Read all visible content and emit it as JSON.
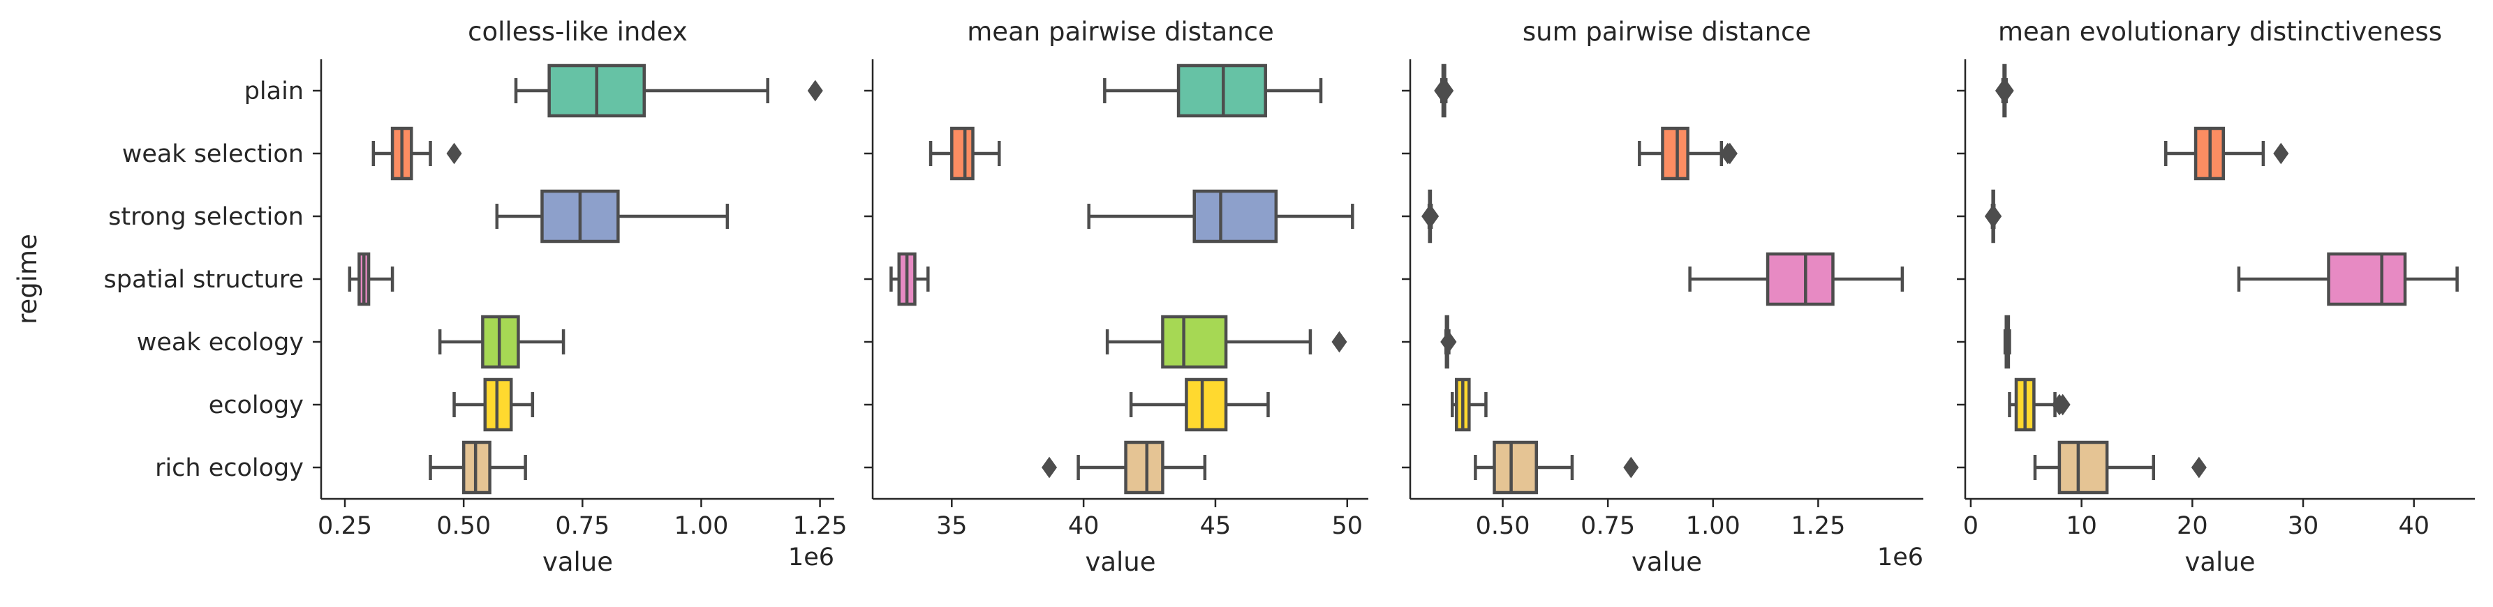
{
  "chart_data": {
    "type": "boxplot",
    "ylabel": "regime",
    "categories": [
      "plain",
      "weak selection",
      "strong selection",
      "spatial structure",
      "weak ecology",
      "ecology",
      "rich ecology"
    ],
    "colors": [
      "#66c2a5",
      "#fc8d62",
      "#8da0cb",
      "#e78ac3",
      "#a6d854",
      "#ffd92f",
      "#e5c494"
    ],
    "panels": [
      {
        "title": "colless-like index",
        "xlabel": "value",
        "offset_label": "1e6",
        "xlim": [
          0.2,
          1.28
        ],
        "ticks": [
          0.25,
          0.5,
          0.75,
          1.0,
          1.25
        ],
        "tick_labels": [
          "0.25",
          "0.50",
          "0.75",
          "1.00",
          "1.25"
        ],
        "boxes": [
          {
            "whislo": 0.61,
            "q1": 0.68,
            "med": 0.78,
            "q3": 0.88,
            "whishi": 1.14,
            "fliers": [
              1.24
            ]
          },
          {
            "whislo": 0.31,
            "q1": 0.35,
            "med": 0.37,
            "q3": 0.39,
            "whishi": 0.43,
            "fliers": [
              0.48
            ]
          },
          {
            "whislo": 0.57,
            "q1": 0.665,
            "med": 0.745,
            "q3": 0.825,
            "whishi": 1.055,
            "fliers": []
          },
          {
            "whislo": 0.26,
            "q1": 0.28,
            "med": 0.29,
            "q3": 0.3,
            "whishi": 0.35,
            "fliers": []
          },
          {
            "whislo": 0.45,
            "q1": 0.54,
            "med": 0.575,
            "q3": 0.615,
            "whishi": 0.71,
            "fliers": []
          },
          {
            "whislo": 0.48,
            "q1": 0.545,
            "med": 0.57,
            "q3": 0.6,
            "whishi": 0.645,
            "fliers": []
          },
          {
            "whislo": 0.43,
            "q1": 0.5,
            "med": 0.525,
            "q3": 0.555,
            "whishi": 0.63,
            "fliers": []
          }
        ]
      },
      {
        "title": "mean pairwise distance",
        "xlabel": "value",
        "offset_label": "",
        "xlim": [
          32,
          50.8
        ],
        "ticks": [
          35,
          40,
          45,
          50
        ],
        "tick_labels": [
          "35",
          "40",
          "45",
          "50"
        ],
        "boxes": [
          {
            "whislo": 40.8,
            "q1": 43.6,
            "med": 45.3,
            "q3": 46.9,
            "whishi": 49.0,
            "fliers": []
          },
          {
            "whislo": 34.2,
            "q1": 35.0,
            "med": 35.5,
            "q3": 35.8,
            "whishi": 36.8,
            "fliers": []
          },
          {
            "whislo": 40.2,
            "q1": 44.2,
            "med": 45.2,
            "q3": 47.3,
            "whishi": 50.2,
            "fliers": []
          },
          {
            "whislo": 32.7,
            "q1": 33.0,
            "med": 33.3,
            "q3": 33.6,
            "whishi": 34.1,
            "fliers": []
          },
          {
            "whislo": 40.9,
            "q1": 43.0,
            "med": 43.8,
            "q3": 45.4,
            "whishi": 48.6,
            "fliers": [
              49.7
            ]
          },
          {
            "whislo": 41.8,
            "q1": 43.9,
            "med": 44.5,
            "q3": 45.4,
            "whishi": 47.0,
            "fliers": []
          },
          {
            "whislo": 39.8,
            "q1": 41.6,
            "med": 42.4,
            "q3": 43.0,
            "whishi": 44.6,
            "fliers": [
              38.7
            ]
          }
        ]
      },
      {
        "title": "sum pairwise distance",
        "xlabel": "value",
        "offset_label": "1e6",
        "xlim": [
          0.28,
          1.5
        ],
        "ticks": [
          0.5,
          0.75,
          1.0,
          1.25
        ],
        "tick_labels": [
          "0.50",
          "0.75",
          "1.00",
          "1.25"
        ],
        "boxes": [
          {
            "whislo": 0.355,
            "q1": 0.358,
            "med": 0.36,
            "q3": 0.362,
            "whishi": 0.365,
            "fliers": [
              0.355,
              0.365
            ]
          },
          {
            "whislo": 0.825,
            "q1": 0.88,
            "med": 0.915,
            "q3": 0.94,
            "whishi": 1.02,
            "fliers": [
              1.035,
              1.04
            ]
          },
          {
            "whislo": 0.325,
            "q1": 0.326,
            "med": 0.327,
            "q3": 0.328,
            "whishi": 0.33,
            "fliers": [
              0.325,
              0.33
            ]
          },
          {
            "whislo": 0.945,
            "q1": 1.13,
            "med": 1.22,
            "q3": 1.285,
            "whishi": 1.45,
            "fliers": []
          },
          {
            "whislo": 0.365,
            "q1": 0.366,
            "med": 0.367,
            "q3": 0.369,
            "whishi": 0.372,
            "fliers": [
              0.37,
              0.372
            ]
          },
          {
            "whislo": 0.38,
            "q1": 0.39,
            "med": 0.405,
            "q3": 0.42,
            "whishi": 0.46,
            "fliers": []
          },
          {
            "whislo": 0.435,
            "q1": 0.48,
            "med": 0.52,
            "q3": 0.58,
            "whishi": 0.665,
            "fliers": [
              0.805
            ]
          }
        ]
      },
      {
        "title": "mean evolutionary distinctiveness",
        "xlabel": "value",
        "offset_label": "",
        "xlim": [
          -0.5,
          45.5
        ],
        "ticks": [
          0,
          10,
          20,
          30,
          40
        ],
        "tick_labels": [
          "0",
          "10",
          "20",
          "30",
          "40"
        ],
        "boxes": [
          {
            "whislo": 2.9,
            "q1": 3.0,
            "med": 3.05,
            "q3": 3.1,
            "whishi": 3.2,
            "fliers": [
              2.9,
              3.2
            ]
          },
          {
            "whislo": 17.6,
            "q1": 20.3,
            "med": 21.6,
            "q3": 22.8,
            "whishi": 26.4,
            "fliers": [
              28.0
            ]
          },
          {
            "whislo": 1.95,
            "q1": 2.0,
            "med": 2.02,
            "q3": 2.05,
            "whishi": 2.1,
            "fliers": [
              1.95,
              2.1
            ]
          },
          {
            "whislo": 24.2,
            "q1": 32.3,
            "med": 37.1,
            "q3": 39.2,
            "whishi": 43.9,
            "fliers": []
          },
          {
            "whislo": 3.1,
            "q1": 3.2,
            "med": 3.3,
            "q3": 3.4,
            "whishi": 3.5,
            "fliers": []
          },
          {
            "whislo": 3.5,
            "q1": 4.1,
            "med": 4.9,
            "q3": 5.7,
            "whishi": 7.6,
            "fliers": [
              8.0,
              8.3
            ]
          },
          {
            "whislo": 5.8,
            "q1": 8.0,
            "med": 9.7,
            "q3": 12.3,
            "whishi": 16.5,
            "fliers": [
              20.6
            ]
          }
        ]
      }
    ]
  }
}
